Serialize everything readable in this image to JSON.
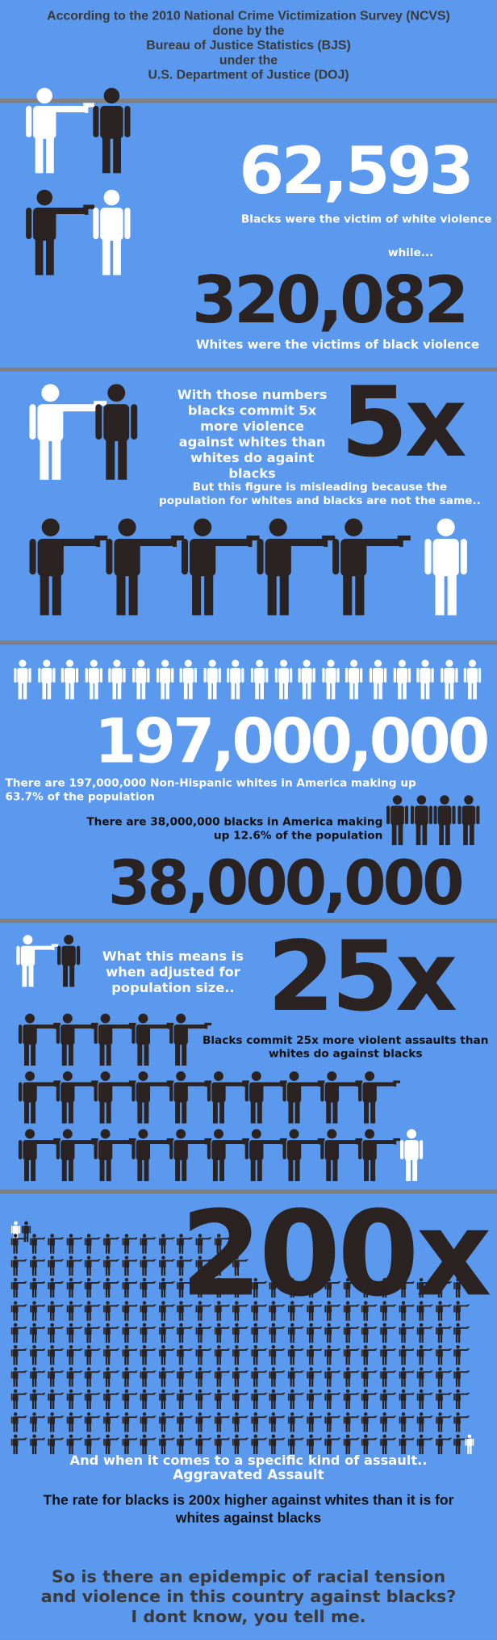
{
  "header": {
    "lines": [
      "According to the 2010 National Crime Victimization Survey (NCVS)",
      "done by the",
      "Bureau of Justice Statistics (BJS)",
      "under the",
      "U.S. Department of Justice (DOJ)"
    ]
  },
  "section1": {
    "number1": "62,593",
    "caption1": "Blacks were the victim of white violence",
    "connector": "while...",
    "number2": "320,082",
    "caption2": "Whites were the victims of black violence"
  },
  "section2": {
    "text": "With those numbers blacks commit 5x more violence against whites than whites do againt blacks",
    "multiplier": "5x",
    "note": "But this figure is misleading because the population for whites and blacks are not the same.."
  },
  "section3": {
    "number1": "197,000,000",
    "caption1": "There are 197,000,000 Non-Hispanic whites in America making up 63.7% of the population",
    "caption2": "There are 38,000,000 blacks in America making up 12.6% of the population",
    "number2": "38,000,000"
  },
  "section4": {
    "text": "What this means is when adjusted for population size..",
    "multiplier": "25x",
    "caption": "Blacks commit 25x more violent assaults than whites do against blacks"
  },
  "section5": {
    "multiplier": "200x",
    "line1": "And when it comes to a specific kind of assault..",
    "line2": "Aggravated Assault",
    "line3": "The rate for blacks is 200x higher against whites than it is for whites against blacks"
  },
  "closing": {
    "line1": "So is there an epidempic of racial tension",
    "line2": "and violence in this country against blacks?",
    "line3": "I dont know, you tell me."
  },
  "colors": {
    "background": "#5b99ee",
    "dark_figure": "#2b2321",
    "light_figure": "#ffffff",
    "divider": "#808080",
    "header_text": "#3a3a3a"
  },
  "icons": {
    "standing": "person-standing-icon",
    "pointing": "person-pointing-gun-icon"
  }
}
